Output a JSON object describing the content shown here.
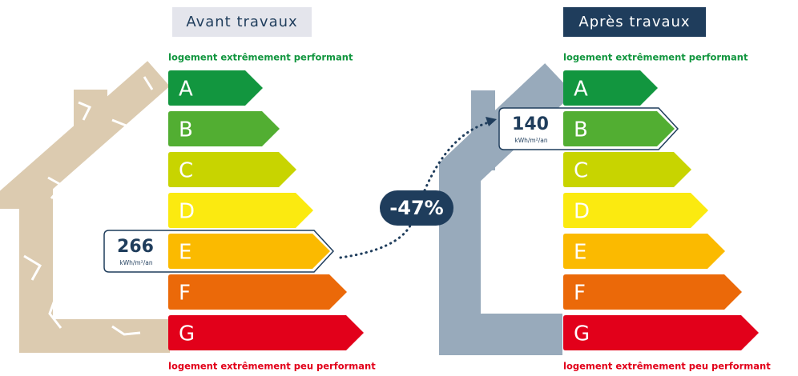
{
  "before": {
    "title": "Avant travaux",
    "top_label": "logement extrêmement performant",
    "bottom_label": "logement extrêmement peu performant",
    "classes": [
      "A",
      "B",
      "C",
      "D",
      "E",
      "F",
      "G"
    ],
    "consumption": {
      "value": "266",
      "unit": "kWh/m²/an"
    }
  },
  "after": {
    "title": "Après travaux",
    "top_label": "logement extrêmement performant",
    "bottom_label": "logement extrêmement peu performant",
    "classes": [
      "A",
      "B",
      "C",
      "D",
      "E",
      "F",
      "G"
    ],
    "consumption": {
      "value": "140",
      "unit": "kWh/m²/an"
    }
  },
  "reduction": "-47%"
}
